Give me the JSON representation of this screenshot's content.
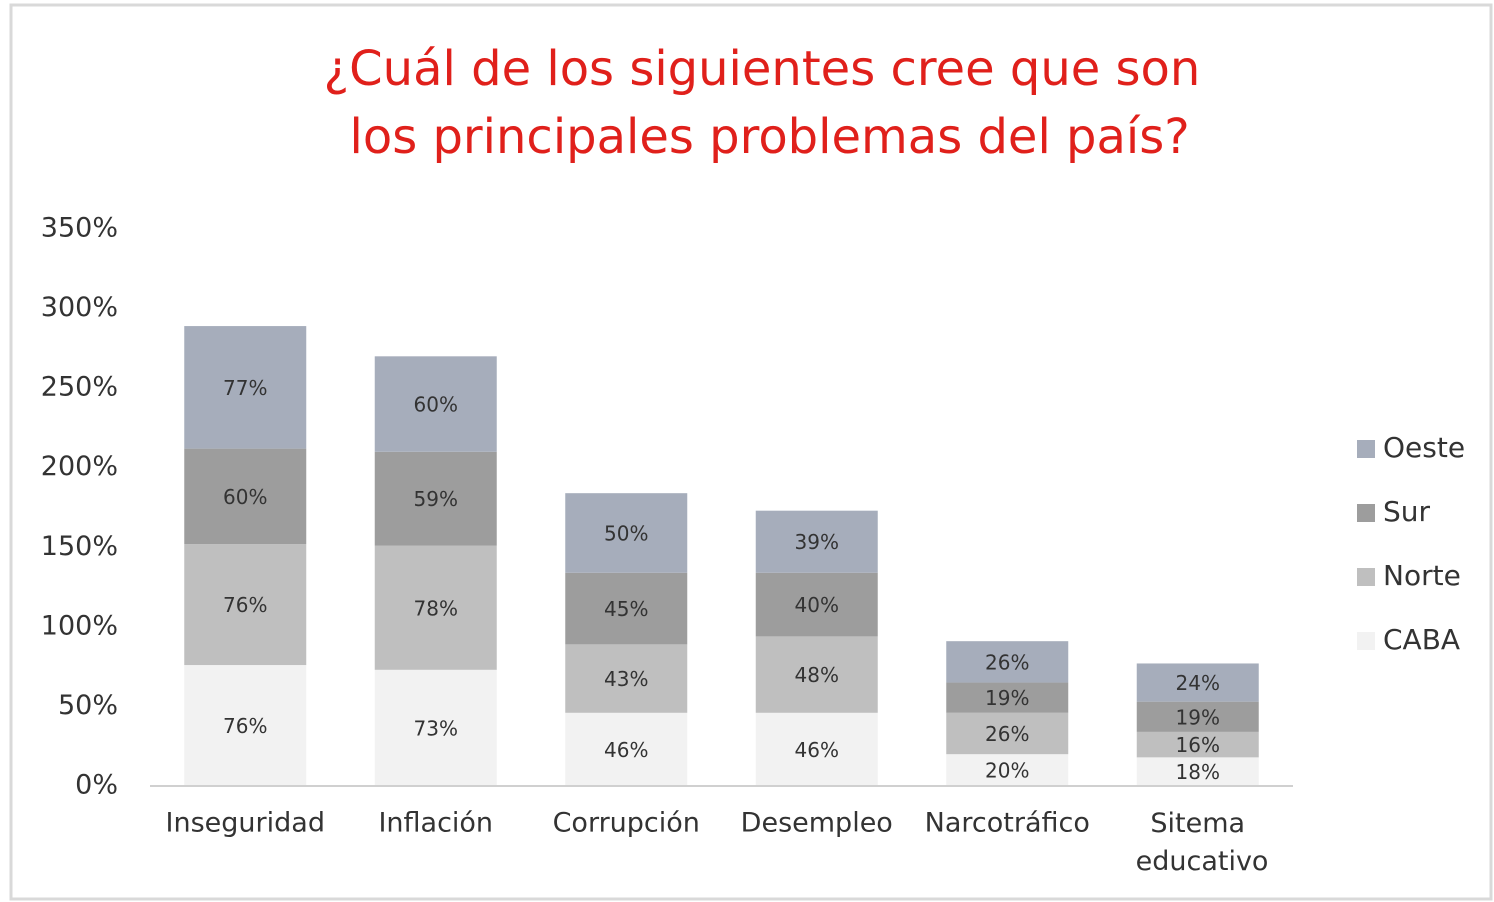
{
  "chart_data": {
    "type": "stacked_bar",
    "title": "¿Cuál de los siguientes cree que son los principales problemas del país?",
    "categories": [
      "Inseguridad",
      "Inflación",
      "Corrupción",
      "Desempleo",
      "Narcotráfico",
      "Sitema educativo"
    ],
    "series": [
      {
        "name": "CABA",
        "color": "#f2f2f2",
        "values": [
          76,
          73,
          46,
          46,
          20,
          18
        ],
        "value_labels": [
          "76%",
          "73%",
          "46%",
          "46%",
          "20%",
          "18%"
        ]
      },
      {
        "name": "Norte",
        "color": "#bfbfbf",
        "values": [
          76,
          78,
          43,
          48,
          26,
          16
        ],
        "value_labels": [
          "76%",
          "78%",
          "43%",
          "48%",
          "26%",
          "16%"
        ]
      },
      {
        "name": "Sur",
        "color": "#9d9d9d",
        "values": [
          60,
          59,
          45,
          40,
          19,
          19
        ],
        "value_labels": [
          "60%",
          "59%",
          "45%",
          "40%",
          "19%",
          "19%"
        ]
      },
      {
        "name": "Oeste",
        "color": "#a6adbb",
        "values": [
          77,
          60,
          50,
          39,
          26,
          24
        ],
        "value_labels": [
          "77%",
          "60%",
          "50%",
          "39%",
          "26%",
          "24%"
        ]
      }
    ],
    "ylim": [
      0,
      350
    ],
    "yticks": [
      {
        "value": 0,
        "label": "0%"
      },
      {
        "value": 50,
        "label": "50%"
      },
      {
        "value": 100,
        "label": "100%"
      },
      {
        "value": 150,
        "label": "150%"
      },
      {
        "value": 200,
        "label": "200%"
      },
      {
        "value": 250,
        "label": "250%"
      },
      {
        "value": 300,
        "label": "300%"
      },
      {
        "value": 350,
        "label": "350%"
      }
    ],
    "legend": "right",
    "grid": false
  }
}
